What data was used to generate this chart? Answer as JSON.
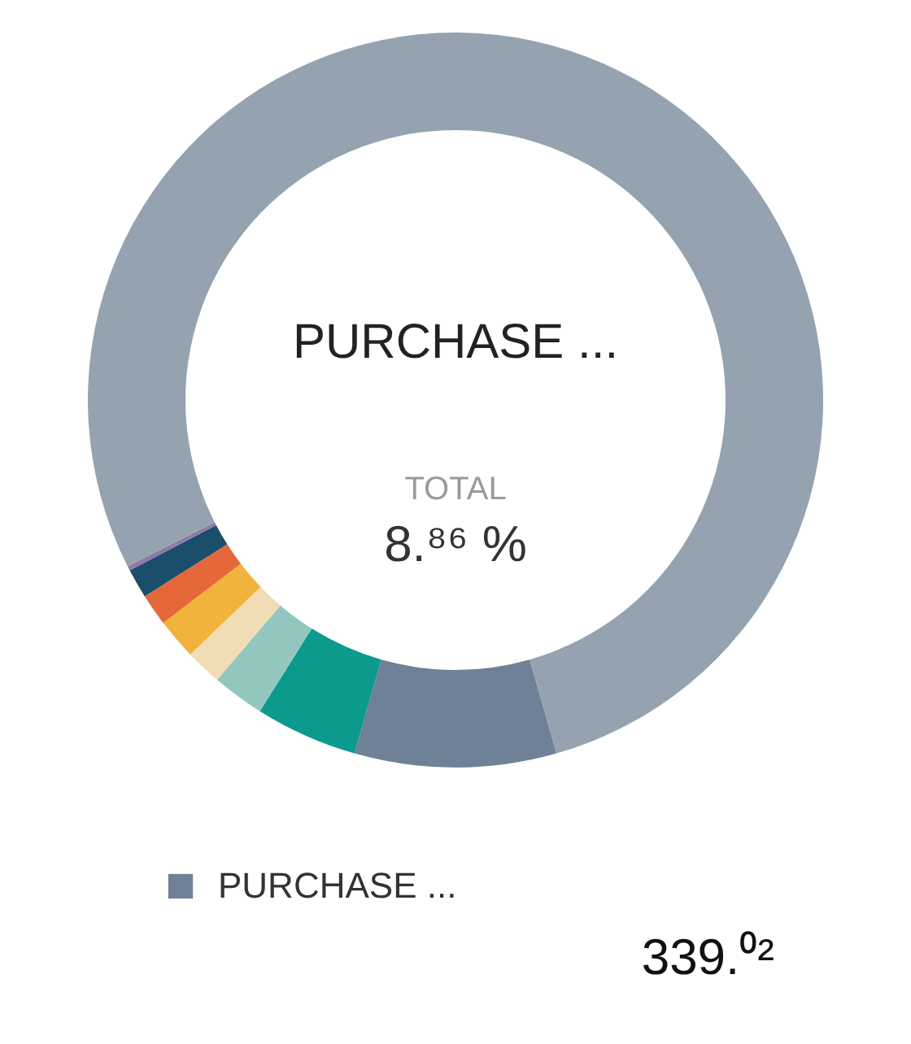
{
  "chart_data": {
    "type": "donut",
    "title": "PURCHASE ...",
    "categories": [
      "PURCHASE ...",
      null,
      null,
      null,
      null,
      null,
      null,
      null,
      null
    ],
    "values": [
      8.86,
      4.5,
      2.3,
      1.6,
      1.8,
      1.4,
      1.3,
      0.2,
      78.04
    ],
    "colors": [
      "#6f8197",
      "#0c9a8f",
      "#93c6bf",
      "#f0ddb6",
      "#f2b33d",
      "#e6673a",
      "#1b4e6b",
      "#8f79a8",
      "#95a2b0"
    ],
    "annotations": [
      "TOTAL",
      "8.⁸⁶ %",
      "339.⁰²"
    ],
    "legend": "bottom"
  }
}
